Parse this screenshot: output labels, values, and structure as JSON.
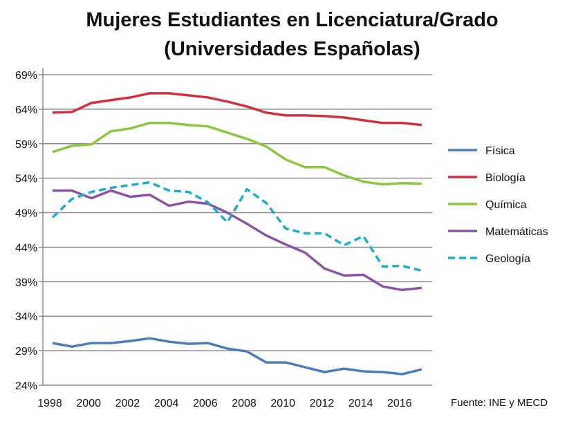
{
  "chart_data": {
    "type": "line",
    "title_line1": "Mujeres Estudiantes en Licenciatura/Grado",
    "title_line2": "(Universidades Españolas)",
    "xlabel": "",
    "ylabel": "",
    "x": [
      1998,
      1999,
      2000,
      2001,
      2002,
      2003,
      2004,
      2005,
      2006,
      2007,
      2008,
      2009,
      2010,
      2011,
      2012,
      2013,
      2014,
      2015,
      2016,
      2017
    ],
    "x_ticks": [
      "1998",
      "2000",
      "2002",
      "2004",
      "2006",
      "2008",
      "2010",
      "2012",
      "2014",
      "2016"
    ],
    "y_ticks": [
      "24%",
      "29%",
      "34%",
      "39%",
      "44%",
      "49%",
      "54%",
      "59%",
      "64%",
      "69%"
    ],
    "ylim": [
      24,
      69
    ],
    "grid": true,
    "legend_position": "right",
    "series": [
      {
        "name": "Física",
        "color": "#4a7ebb",
        "dashed": false,
        "values": [
          30.1,
          29.6,
          30.1,
          30.1,
          30.4,
          30.8,
          30.3,
          30.0,
          30.1,
          29.3,
          28.9,
          27.3,
          27.3,
          26.6,
          25.9,
          26.4,
          26.0,
          25.9,
          25.6,
          26.3
        ]
      },
      {
        "name": "Biología",
        "color": "#d2303f",
        "dashed": false,
        "values": [
          63.5,
          63.6,
          64.9,
          65.3,
          65.7,
          66.3,
          66.3,
          66.0,
          65.7,
          65.1,
          64.4,
          63.5,
          63.1,
          63.1,
          63.0,
          62.8,
          62.4,
          62.0,
          62.0,
          61.7
        ]
      },
      {
        "name": "Química",
        "color": "#8cc63f",
        "dashed": false,
        "values": [
          57.8,
          58.7,
          58.9,
          60.8,
          61.2,
          62.0,
          62.0,
          61.7,
          61.5,
          60.6,
          59.7,
          58.6,
          56.7,
          55.6,
          55.6,
          54.4,
          53.5,
          53.1,
          53.3,
          53.2
        ]
      },
      {
        "name": "Matemáticas",
        "color": "#8c52a8",
        "dashed": false,
        "values": [
          52.2,
          52.2,
          51.1,
          52.2,
          51.3,
          51.6,
          50.0,
          50.6,
          50.3,
          49.0,
          47.4,
          45.7,
          44.4,
          43.2,
          40.9,
          39.9,
          40.0,
          38.3,
          37.8,
          38.1
        ]
      },
      {
        "name": "Geología",
        "color": "#1ab0cc",
        "dashed": true,
        "values": [
          48.3,
          51.0,
          52.0,
          52.6,
          53.0,
          53.4,
          52.2,
          52.0,
          50.5,
          47.6,
          52.4,
          50.4,
          46.7,
          46.0,
          46.0,
          44.3,
          45.6,
          41.2,
          41.3,
          40.6
        ]
      }
    ],
    "source": "Fuente: INE y MECD"
  }
}
